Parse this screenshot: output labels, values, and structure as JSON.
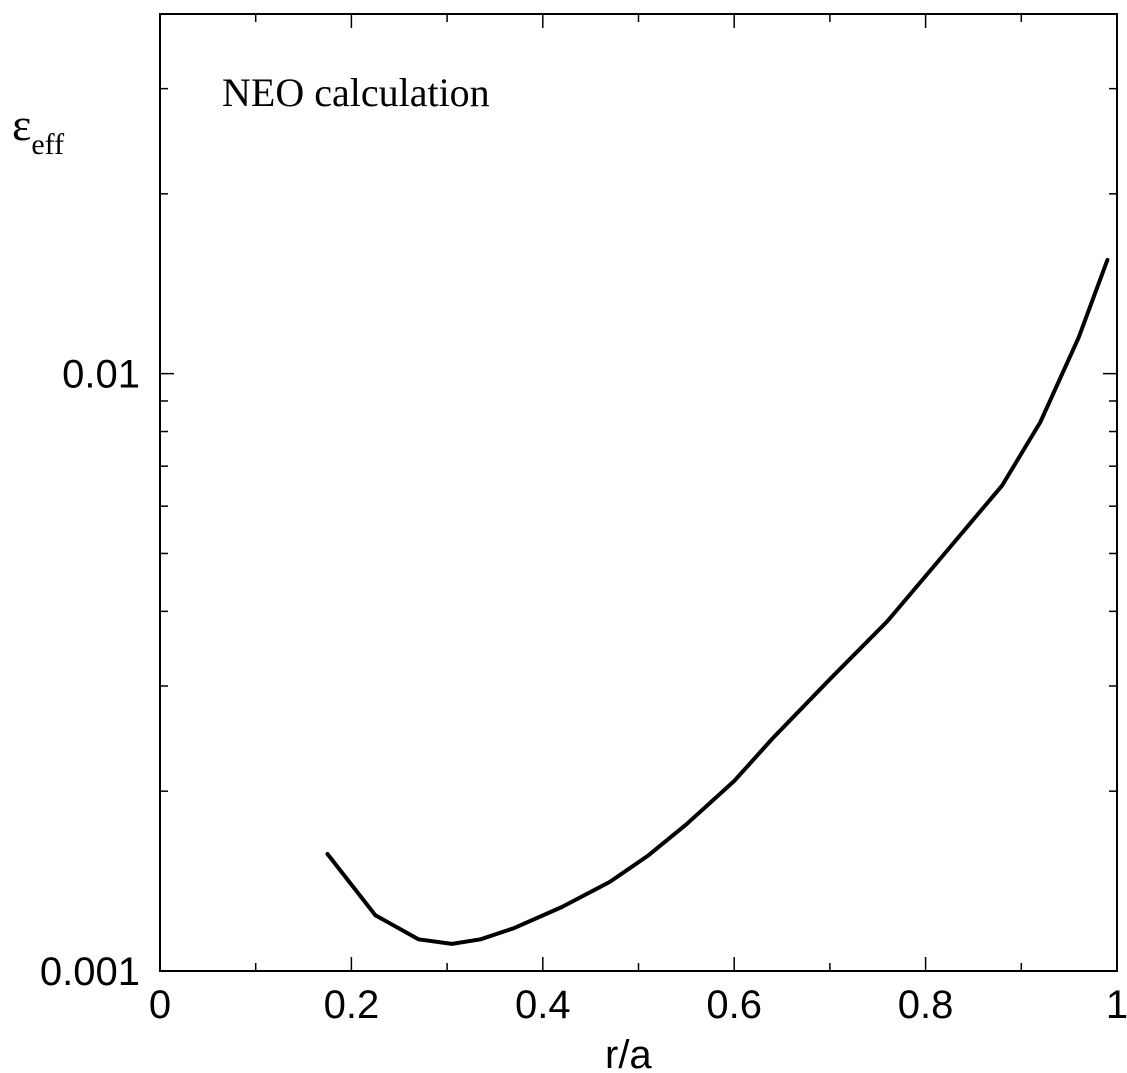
{
  "chart_data": {
    "type": "line",
    "annotation": "NEO calculation",
    "xlabel": "r/a",
    "ylabel": "ε",
    "ylabel_subscript": "eff",
    "xlim": [
      0,
      1
    ],
    "ylim": [
      0.001,
      0.04
    ],
    "y_scale": "log",
    "grid": false,
    "x_ticks": [
      {
        "value": 0,
        "label": "0"
      },
      {
        "value": 0.2,
        "label": "0.2"
      },
      {
        "value": 0.4,
        "label": "0.4"
      },
      {
        "value": 0.6,
        "label": "0.6"
      },
      {
        "value": 0.8,
        "label": "0.8"
      },
      {
        "value": 1,
        "label": "1"
      }
    ],
    "x_minor_ticks": [
      0.1,
      0.3,
      0.5,
      0.7,
      0.9
    ],
    "y_ticks": [
      {
        "value": 0.001,
        "label": "0.001"
      },
      {
        "value": 0.01,
        "label": "0.01"
      }
    ],
    "y_minor_ticks": [
      0.002,
      0.003,
      0.004,
      0.005,
      0.006,
      0.007,
      0.008,
      0.009,
      0.02,
      0.03
    ],
    "series": [
      {
        "x": [
          0.175,
          0.225,
          0.27,
          0.305,
          0.335,
          0.37,
          0.42,
          0.47,
          0.51,
          0.55,
          0.6,
          0.64,
          0.7,
          0.76,
          0.82,
          0.88,
          0.92,
          0.96,
          0.99
        ],
        "y": [
          0.00157,
          0.00124,
          0.00113,
          0.00111,
          0.00113,
          0.00118,
          0.00128,
          0.00141,
          0.00156,
          0.00176,
          0.00208,
          0.00245,
          0.00308,
          0.00385,
          0.005,
          0.0065,
          0.0083,
          0.0115,
          0.0155
        ]
      }
    ]
  }
}
